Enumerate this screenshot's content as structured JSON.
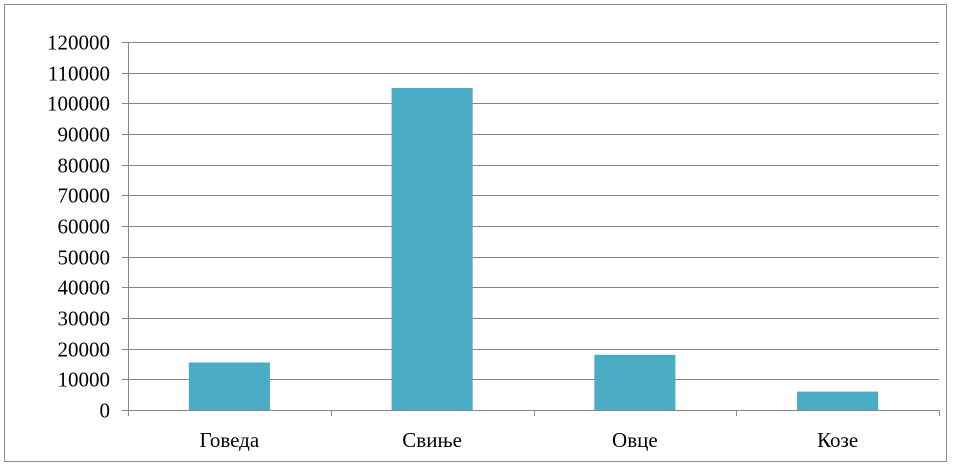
{
  "chart_data": {
    "type": "bar",
    "categories": [
      "Говеда",
      "Свиње",
      "Овце",
      "Козе"
    ],
    "values": [
      15500,
      105000,
      18000,
      6000
    ],
    "ylim": [
      0,
      120000
    ],
    "yticks": [
      0,
      10000,
      20000,
      30000,
      40000,
      50000,
      60000,
      70000,
      80000,
      90000,
      100000,
      110000,
      120000
    ],
    "grid": true,
    "legend": "none",
    "bar_color": "#4bacc6",
    "title": "",
    "xlabel": "",
    "ylabel": ""
  }
}
